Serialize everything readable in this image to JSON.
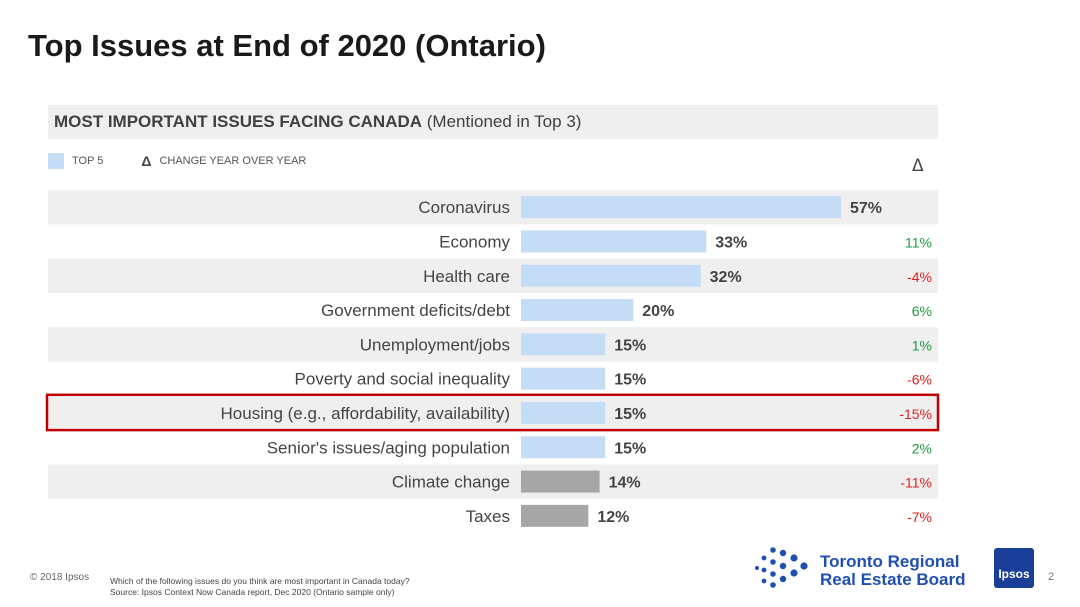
{
  "slide": {
    "title": "Top Issues at End of 2020 (Ontario)",
    "page_number": "2"
  },
  "chart_header": {
    "bold_text": "MOST IMPORTANT ISSUES FACING CANADA",
    "normal_text": "(Mentioned in Top 3)"
  },
  "legend": {
    "top5_label": "TOP 5",
    "delta_symbol": "Δ",
    "delta_label": "CHANGE YEAR OVER YEAR"
  },
  "delta_column_symbol": "Δ",
  "footer": {
    "copyright": "© 2018 Ipsos",
    "question": "Which of the following issues do you think are most important in Canada today?",
    "source": "Source: Ipsos Context Now Canada report, Dec 2020 (Ontario sample only)"
  },
  "logos": {
    "trreb_line1": "Toronto Regional",
    "trreb_line2": "Real Estate Board",
    "ipsos": "Ipsos"
  },
  "colors": {
    "top5_bar": "#c5dcf7",
    "other_bar": "#a6a6a6",
    "positive_change": "#1e9a3c",
    "negative_change": "#e02020",
    "highlight_box": "#c00000",
    "stripe": "#efefef"
  },
  "chart_data": {
    "type": "bar",
    "orientation": "horizontal",
    "title": "MOST IMPORTANT ISSUES FACING CANADA (Mentioned in Top 3)",
    "value_unit": "%",
    "xlim": [
      0,
      57
    ],
    "categories": [
      "Coronavirus",
      "Economy",
      "Health care",
      "Government deficits/debt",
      "Unemployment/jobs",
      "Poverty and social inequality",
      "Housing (e.g., affordability, availability)",
      "Senior's issues/aging population",
      "Climate change",
      "Taxes"
    ],
    "values": [
      57,
      33,
      32,
      20,
      15,
      15,
      15,
      15,
      14,
      12
    ],
    "value_labels": [
      "57%",
      "33%",
      "32%",
      "20%",
      "15%",
      "15%",
      "15%",
      "15%",
      "14%",
      "12%"
    ],
    "top5": [
      true,
      true,
      true,
      true,
      true,
      true,
      true,
      true,
      false,
      false
    ],
    "change_yoy": [
      null,
      11,
      -4,
      6,
      1,
      -6,
      -15,
      2,
      -11,
      -7
    ],
    "change_labels": [
      "",
      "11%",
      "-4%",
      "6%",
      "1%",
      "-6%",
      "-15%",
      "2%",
      "-11%",
      "-7%"
    ],
    "highlighted_category": "Housing (e.g., affordability, availability)"
  }
}
